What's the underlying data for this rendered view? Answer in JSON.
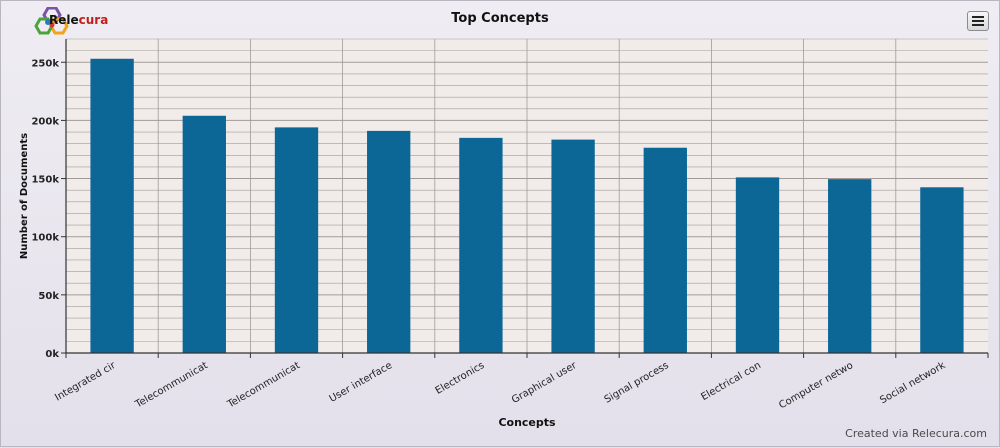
{
  "brand": {
    "name_main": "Rele",
    "name_accent": "cura",
    "accent_color": "#c0201a",
    "logo_colors": [
      "#7a53a8",
      "#f2a31b",
      "#4aa43c",
      "#2b78c2",
      "#d4342b"
    ]
  },
  "menu_button": {
    "icon": "hamburger-menu-icon"
  },
  "footer": {
    "credit": "Created via Relecura.com"
  },
  "colors": {
    "bar": "#0d6796",
    "plot_bg": "#f1ecea",
    "grid": "#a19b97"
  },
  "chart_data": {
    "type": "bar",
    "title": "Top Concepts",
    "xlabel": "Concepts",
    "ylabel": "Number of Documents",
    "categories": [
      "Integrated cir",
      "Telecommunicat",
      "Telecommunicat",
      "User interface",
      "Electronics",
      "Graphical user",
      "Signal process",
      "Electrical con",
      "Computer netwo",
      "Social network"
    ],
    "values": [
      253000,
      204000,
      194000,
      191000,
      185000,
      183500,
      176500,
      151000,
      149500,
      142500
    ],
    "ylim": [
      0,
      270000
    ],
    "yticks": [
      0,
      50000,
      100000,
      150000,
      200000,
      250000
    ],
    "ytick_labels": [
      "0k",
      "50k",
      "100k",
      "150k",
      "200k",
      "250k"
    ],
    "grid": true,
    "legend": "none"
  }
}
